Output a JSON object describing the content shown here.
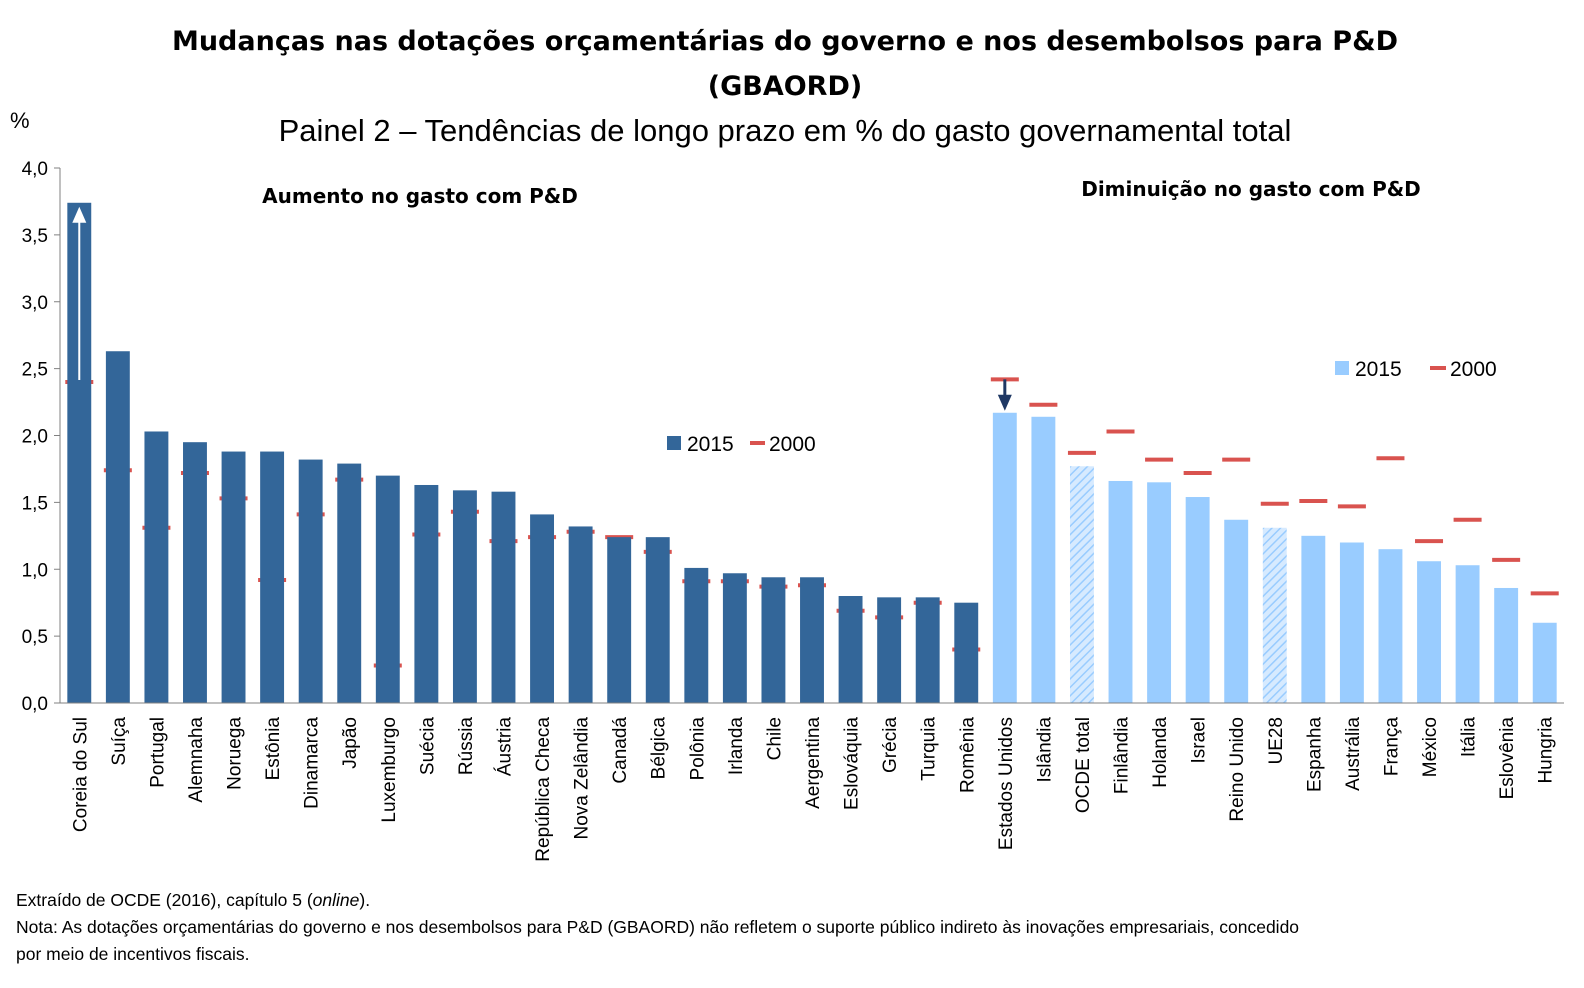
{
  "chart_data": {
    "type": "bar",
    "title_line1": "Mudanças nas dotações orçamentárias do governo e nos desembolsos para P&D",
    "title_line2": "(GBAORD)",
    "subtitle": "Painel 2 – Tendências de longo prazo em % do gasto governamental total",
    "ylabel": "%",
    "ylim": [
      0,
      4.0
    ],
    "yticks": [
      "0,0",
      "0,5",
      "1,0",
      "1,5",
      "2,0",
      "2,5",
      "3,0",
      "3,5",
      "4,0"
    ],
    "section_increase": "Aumento no gasto com P&D",
    "section_decrease": "Diminuição no gasto com P&D",
    "legend_left": {
      "series_2015": "2015",
      "series_2000": "2000"
    },
    "legend_right": {
      "series_2015": "2015",
      "series_2000": "2000"
    },
    "categories": [
      "Coreia do Sul",
      "Suíça",
      "Portugal",
      "Alemnaha",
      "Noruega",
      "Estônia",
      "Dinamarca",
      "Japão",
      "Luxemburgo",
      "Suécia",
      "Rússia",
      "Áustria",
      "República Checa",
      "Nova Zelândia",
      "Canadá",
      "Bélgica",
      "Polônia",
      "Irlanda",
      "Chile",
      "Aergentina",
      "Eslováquia",
      "Grécia",
      "Turquia",
      "Romênia",
      "Estados Unidos",
      "Islândia",
      "OCDE total",
      "Finlândia",
      "Holanda",
      "Israel",
      "Reino Unido",
      "UE28",
      "Espanha",
      "Austrália",
      "França",
      "México",
      "Itália",
      "Eslovênia",
      "Hungria"
    ],
    "series": [
      {
        "name": "2015",
        "values": [
          3.74,
          2.63,
          2.03,
          1.95,
          1.88,
          1.88,
          1.82,
          1.79,
          1.7,
          1.63,
          1.59,
          1.58,
          1.41,
          1.32,
          1.24,
          1.24,
          1.01,
          0.97,
          0.94,
          0.94,
          0.8,
          0.79,
          0.79,
          0.75,
          2.17,
          2.14,
          1.77,
          1.66,
          1.65,
          1.54,
          1.37,
          1.31,
          1.25,
          1.2,
          1.15,
          1.06,
          1.03,
          0.86,
          0.6
        ]
      },
      {
        "name": "2000",
        "values": [
          2.4,
          1.74,
          1.31,
          1.72,
          1.53,
          0.92,
          1.41,
          1.67,
          0.28,
          1.26,
          1.43,
          1.21,
          1.24,
          1.28,
          1.24,
          1.13,
          0.91,
          0.91,
          0.87,
          0.88,
          0.69,
          0.64,
          0.75,
          0.4,
          2.42,
          2.23,
          1.87,
          2.03,
          1.82,
          1.72,
          1.82,
          1.49,
          1.51,
          1.47,
          1.83,
          1.21,
          1.37,
          1.07,
          0.82
        ]
      }
    ],
    "increase_count": 24,
    "hatched": [
      "OCDE total",
      "UE28"
    ],
    "colors": {
      "increase_bar": "#336699",
      "decrease_bar": "#99ccff",
      "marker_2000": "#d9534f",
      "arrow_up": "#ffffff",
      "arrow_down": "#1f3864"
    }
  },
  "footnote": {
    "source_prefix": "Extraído de OCDE (2016), capítulo 5 (",
    "source_italic": "online",
    "source_suffix": ").",
    "note_line1": "Nota: As dotações orçamentárias do governo e nos desembolsos para P&D (GBAORD) não refletem o suporte público indireto às inovações empresariais, concedido",
    "note_line2": "por meio de incentivos fiscais."
  }
}
